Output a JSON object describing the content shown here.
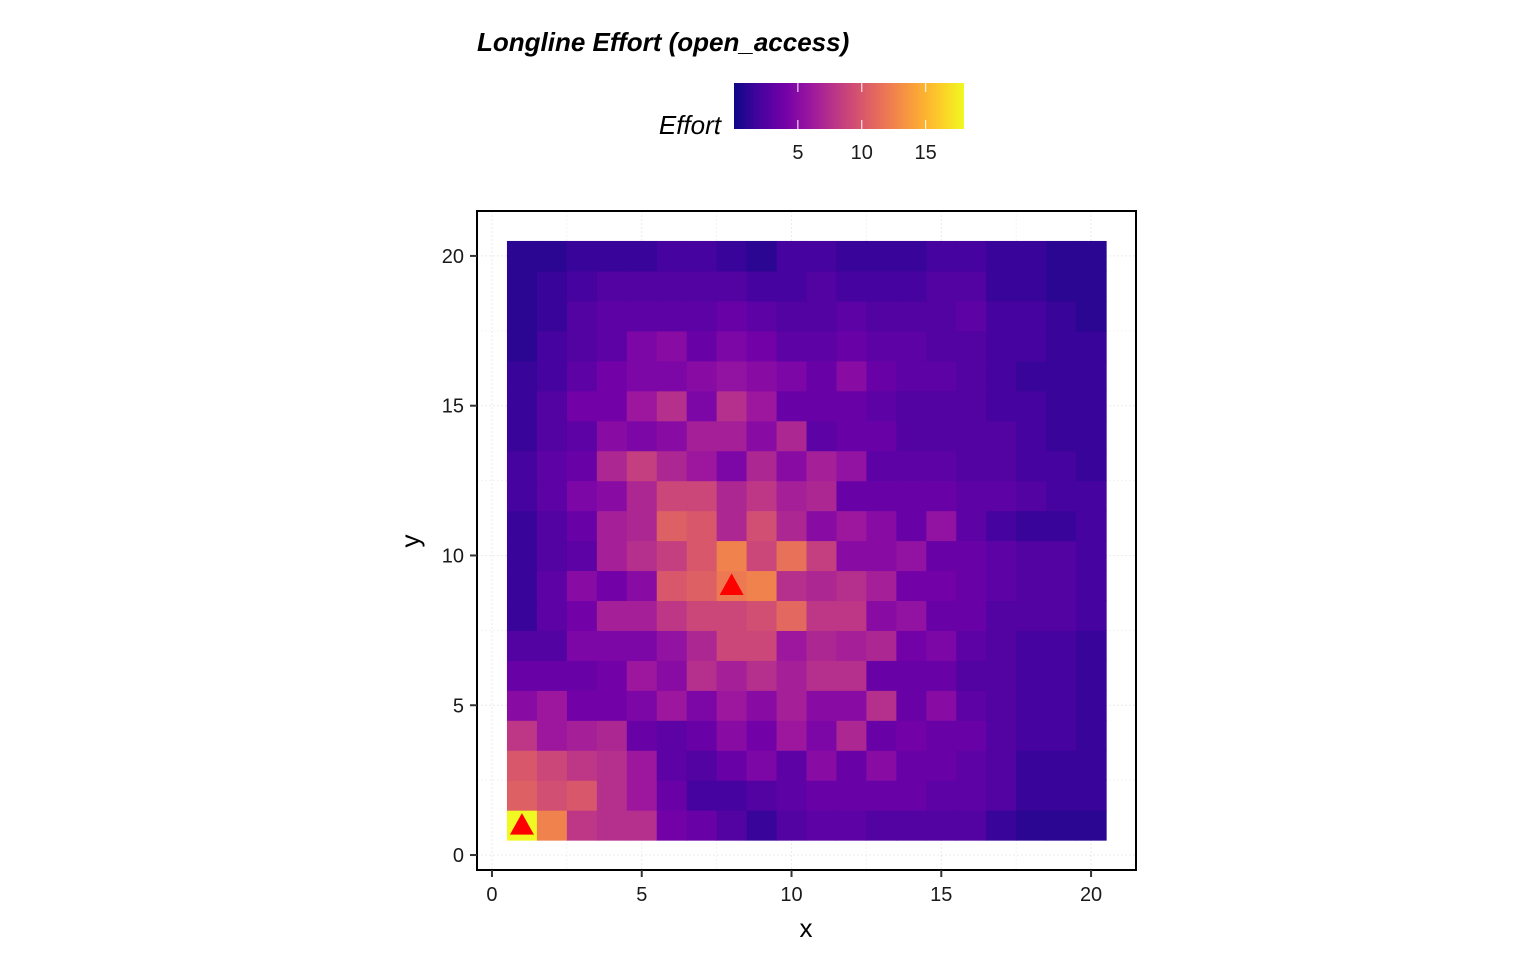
{
  "chart_data": {
    "type": "heatmap",
    "title": "Longline Effort (open_access)",
    "xlabel": "x",
    "ylabel": "y",
    "xlim": [
      -0.5,
      21.5
    ],
    "ylim": [
      -0.5,
      21.5
    ],
    "x_ticks": [
      0,
      5,
      10,
      15,
      20
    ],
    "y_ticks": [
      0,
      5,
      10,
      15,
      20
    ],
    "grid": true,
    "colorbar": {
      "title": "Effort",
      "placement": "top",
      "min": 0,
      "max": 18,
      "ticks": [
        5,
        10,
        15
      ],
      "colormap": "plasma",
      "stops": [
        "#0d0887",
        "#47039f",
        "#7301a8",
        "#9c179e",
        "#bd3786",
        "#d8576b",
        "#ed7953",
        "#fa9f3a",
        "#fdc928",
        "#f0f921"
      ]
    },
    "x": [
      1,
      2,
      3,
      4,
      5,
      6,
      7,
      8,
      9,
      10,
      11,
      12,
      13,
      14,
      15,
      16,
      17,
      18,
      19,
      20
    ],
    "y": [
      1,
      2,
      3,
      4,
      5,
      6,
      7,
      8,
      9,
      10,
      11,
      12,
      13,
      14,
      15,
      16,
      17,
      18,
      19,
      20
    ],
    "z_rows_bottom_to_top": [
      [
        18,
        12.5,
        8,
        7.5,
        7.5,
        4,
        3.5,
        2.5,
        1.5,
        2.5,
        3,
        3,
        2.5,
        2.5,
        2.5,
        2.5,
        1.5,
        1,
        1,
        1
      ],
      [
        10.5,
        9.5,
        10,
        7.5,
        6,
        3.5,
        2,
        2,
        2.5,
        3,
        3.5,
        3.5,
        3.5,
        3.5,
        3,
        3,
        2.5,
        1.5,
        1.5,
        1.5
      ],
      [
        10,
        9,
        8,
        7.5,
        6,
        3,
        2.5,
        3.5,
        4.5,
        3,
        5,
        3.5,
        5,
        3.5,
        3.5,
        3,
        2.5,
        1.5,
        1.5,
        1.5
      ],
      [
        8,
        6,
        6.5,
        7,
        3.5,
        3,
        3.5,
        5,
        4,
        6,
        4.5,
        7,
        3.5,
        4,
        3.5,
        3.5,
        2.5,
        2,
        2,
        1.5
      ],
      [
        5,
        6,
        4,
        4,
        4.5,
        6,
        4.5,
        6,
        5,
        6.5,
        5,
        5,
        7.5,
        3.5,
        5,
        3,
        2.5,
        2,
        2,
        1.5
      ],
      [
        3.5,
        3.5,
        3.5,
        4,
        6,
        5,
        7.5,
        6.5,
        7.5,
        6.5,
        7.5,
        7.5,
        3.5,
        3.5,
        3.5,
        2.5,
        2.5,
        2,
        2,
        1.5
      ],
      [
        2.5,
        2.5,
        4.5,
        4.5,
        4.5,
        5.5,
        7,
        9,
        9,
        6,
        7,
        6.5,
        7,
        4,
        4.5,
        3,
        2.5,
        2,
        2,
        1.5
      ],
      [
        1.5,
        3,
        4,
        6.5,
        6.5,
        8,
        9,
        9,
        9.5,
        11,
        8,
        8,
        5,
        5.5,
        3.5,
        3.5,
        2.5,
        2.5,
        2.5,
        2
      ],
      [
        1.5,
        3,
        5,
        4,
        5,
        10,
        10.5,
        12,
        12.5,
        7.5,
        7,
        7.5,
        6.5,
        4,
        4,
        3.5,
        3,
        2.5,
        2.5,
        2
      ],
      [
        1.5,
        2.5,
        3,
        6.5,
        7.5,
        8.5,
        10,
        12.5,
        9,
        11.5,
        8.5,
        5,
        5,
        5.5,
        3.5,
        3.5,
        3,
        2.5,
        2.5,
        2
      ],
      [
        1.5,
        2.5,
        3.5,
        6.5,
        7,
        10.5,
        10,
        7,
        9.5,
        7,
        5,
        6,
        5,
        3.5,
        5.5,
        3,
        2,
        1.5,
        1.5,
        2
      ],
      [
        2,
        3,
        4.5,
        5,
        7,
        9,
        9,
        7,
        8,
        6.5,
        7,
        3.5,
        3.5,
        3.5,
        3.5,
        3,
        3,
        2.5,
        2,
        2
      ],
      [
        2,
        3,
        3.5,
        7,
        8.5,
        7,
        6,
        4.5,
        7,
        5,
        6.5,
        5.5,
        3,
        3,
        3,
        2.5,
        2.5,
        2,
        2,
        1.5
      ],
      [
        1.5,
        2.5,
        3,
        5,
        4.5,
        5,
        6.5,
        6.5,
        5,
        7,
        3,
        3.5,
        3.5,
        2.5,
        2.5,
        2.5,
        2.5,
        2,
        1.5,
        1.5
      ],
      [
        1.5,
        2.5,
        4,
        4,
        6,
        7.5,
        4.5,
        7.5,
        6,
        3.5,
        3.5,
        3.5,
        3,
        2.5,
        2.5,
        2.5,
        2,
        2,
        1.5,
        1.5
      ],
      [
        1.5,
        2,
        3,
        4,
        4.5,
        4.5,
        5,
        5.5,
        5,
        4.5,
        3.5,
        5,
        3.5,
        3,
        3,
        2.5,
        2,
        1.5,
        1.5,
        1.5
      ],
      [
        1,
        2,
        2.5,
        3,
        4.5,
        5,
        3.5,
        4.5,
        4,
        3,
        3,
        3.5,
        3,
        3,
        2.5,
        2.5,
        2,
        2,
        1.5,
        1.5
      ],
      [
        1,
        1.5,
        2.5,
        3,
        3,
        3,
        3,
        3.5,
        3,
        2.5,
        2.5,
        3,
        2.5,
        2.5,
        2.5,
        3,
        2,
        2,
        1.5,
        1
      ],
      [
        1,
        1.5,
        2,
        2.5,
        2.5,
        2.5,
        2.5,
        2.5,
        2,
        2,
        2.5,
        2,
        2,
        2,
        2.5,
        2.5,
        1.5,
        1.5,
        1,
        1
      ],
      [
        1,
        1,
        1.5,
        1.5,
        1.5,
        2,
        2,
        1.5,
        1,
        2,
        2,
        1.5,
        1.5,
        1.5,
        2,
        2,
        1.5,
        1.5,
        1,
        1
      ]
    ],
    "markers": [
      {
        "x": 1,
        "y": 1,
        "shape": "triangle",
        "color": "#ff0000"
      },
      {
        "x": 8,
        "y": 9,
        "shape": "triangle",
        "color": "#ff0000"
      }
    ]
  }
}
